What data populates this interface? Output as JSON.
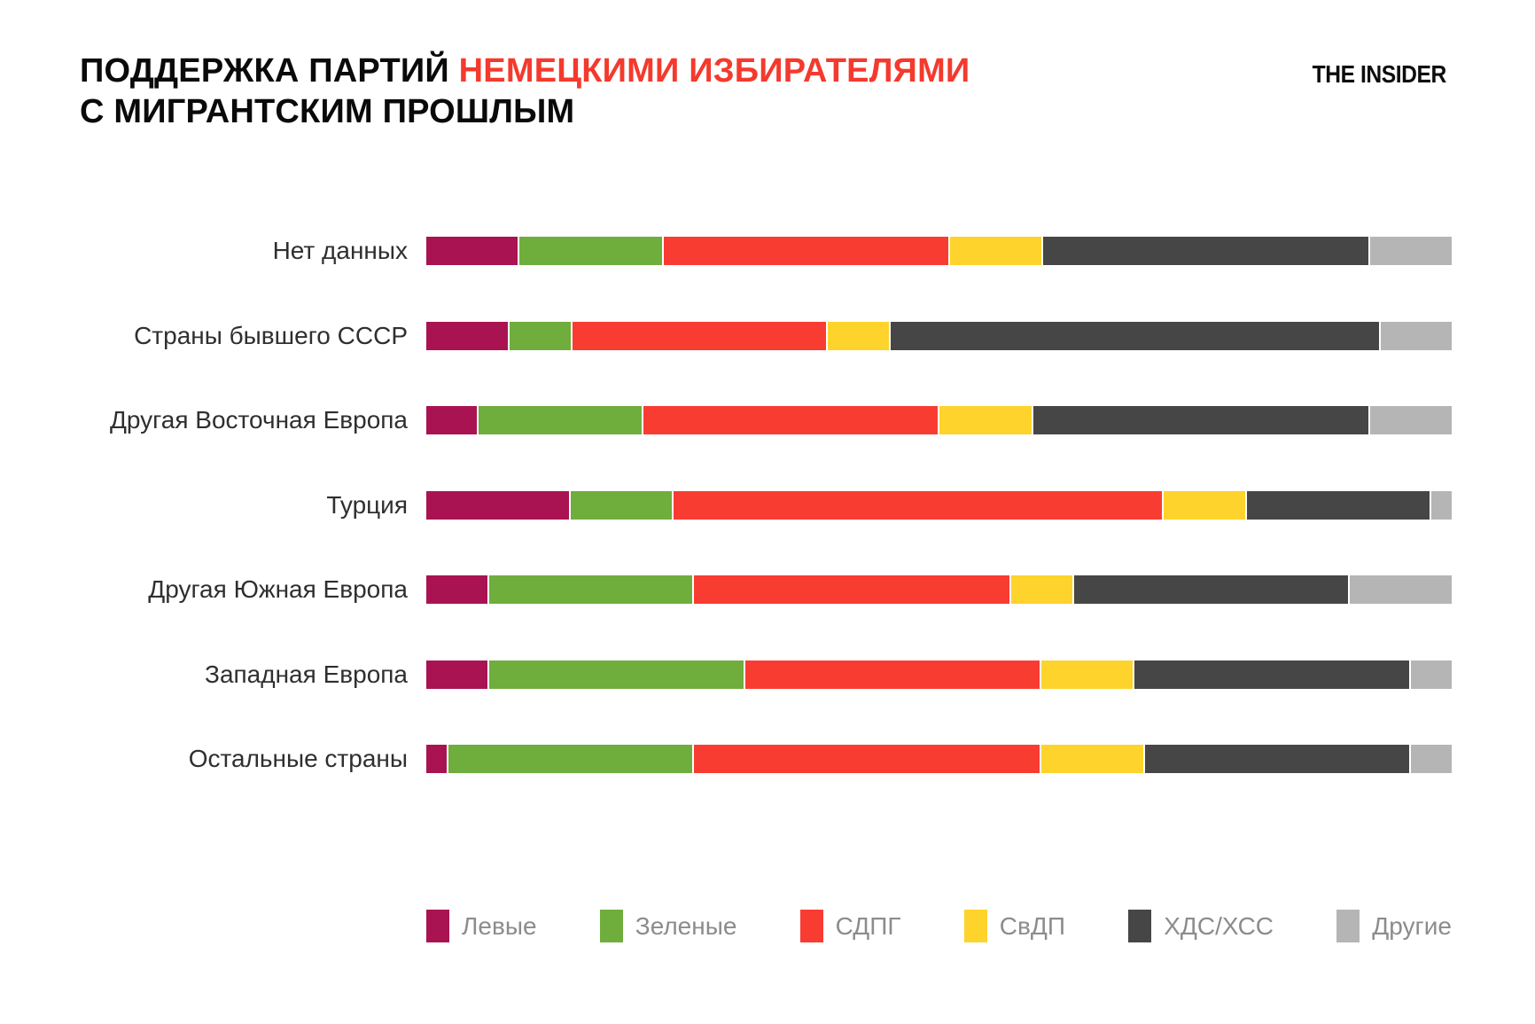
{
  "header": {
    "title_part1": "ПОДДЕРЖКА ПАРТИЙ",
    "title_part2": "НЕМЕЦКИМИ ИЗБИРАТЕЛЯМИ",
    "title_part3": "С МИГРАНТСКИМ ПРОШЛЫМ",
    "accent_color": "#f43a2d",
    "logo": "THE INSIDER"
  },
  "chart_data": {
    "type": "bar",
    "variant": "horizontal_stacked",
    "unit": "percent",
    "title": "ПОДДЕРЖКА ПАРТИЙ НЕМЕЦКИМИ ИЗБИРАТЕЛЯМИ С МИГРАНТСКИМ ПРОШЛЫМ",
    "xlabel": "",
    "ylabel": "",
    "xlim": [
      0,
      100
    ],
    "grid": false,
    "legend_position": "bottom",
    "categories": [
      "Нет данных",
      "Страны бывшего СССР",
      "Другая Восточная Европа",
      "Турция",
      "Другая Южная Европа",
      "Западная Европа",
      "Остальные страны"
    ],
    "series": [
      {
        "name": "Левые",
        "color": "#a91352",
        "values": [
          9,
          8,
          5,
          14,
          6,
          6,
          2
        ]
      },
      {
        "name": "Зеленые",
        "color": "#6fad3d",
        "values": [
          14,
          6,
          16,
          10,
          20,
          25,
          24
        ]
      },
      {
        "name": "СДПГ",
        "color": "#f93c32",
        "values": [
          28,
          25,
          29,
          48,
          31,
          29,
          34
        ]
      },
      {
        "name": "СвДП",
        "color": "#fed32b",
        "values": [
          9,
          6,
          9,
          8,
          6,
          9,
          10
        ]
      },
      {
        "name": "ХДС/ХСС",
        "color": "#464646",
        "values": [
          32,
          48,
          33,
          18,
          27,
          27,
          26
        ]
      },
      {
        "name": "Другие",
        "color": "#b5b5b5",
        "values": [
          8,
          7,
          8,
          2,
          10,
          4,
          4
        ]
      }
    ]
  }
}
